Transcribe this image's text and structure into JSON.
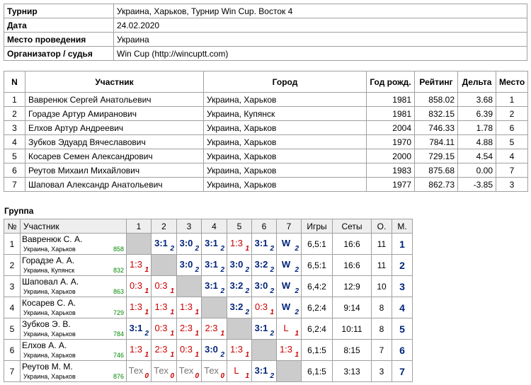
{
  "info": {
    "rows": [
      [
        "Турнир",
        "Украина, Харьков, Турнир Win Cup. Восток 4"
      ],
      [
        "Дата",
        "24.02.2020"
      ],
      [
        "Место проведения",
        "Украина"
      ],
      [
        "Организатор / судья",
        "Win Cup (http://wincuptt.com)"
      ]
    ]
  },
  "participants": {
    "headers": [
      "N",
      "Участник",
      "Город",
      "Год рожд.",
      "Рейтинг",
      "Дельта",
      "Место"
    ],
    "rows": [
      [
        "1",
        "Вавренюк Сергей Анатольевич",
        "Украина, Харьков",
        "1981",
        "858.02",
        "3.68",
        "1"
      ],
      [
        "2",
        "Горадзе Артур Амиранович",
        "Украина, Купянск",
        "1981",
        "832.15",
        "6.39",
        "2"
      ],
      [
        "3",
        "Елхов Артур Андреевич",
        "Украина, Харьков",
        "2004",
        "746.33",
        "1.78",
        "6"
      ],
      [
        "4",
        "Зубков Эдуард Вячеславович",
        "Украина, Харьков",
        "1970",
        "784.11",
        "4.88",
        "5"
      ],
      [
        "5",
        "Косарев Семен Александрович",
        "Украина, Харьков",
        "2000",
        "729.15",
        "4.54",
        "4"
      ],
      [
        "6",
        "Реутов Михаил Михайлович",
        "Украина, Харьков",
        "1983",
        "875.68",
        "0.00",
        "7"
      ],
      [
        "7",
        "Шаповал Александр Анатольевич",
        "Украина, Харьков",
        "1977",
        "862.73",
        "-3.85",
        "3"
      ]
    ]
  },
  "group": {
    "title": "Группа",
    "headers": [
      "№",
      "Участник",
      "1",
      "2",
      "3",
      "4",
      "5",
      "6",
      "7",
      "Игры",
      "Сеты",
      "О.",
      "М."
    ],
    "rows": [
      {
        "num": "1",
        "name": "Вавренюк С. А.",
        "city": "Украина, Харьков",
        "rating": "858",
        "cells": [
          null,
          {
            "score": "3:1",
            "points": 2
          },
          {
            "score": "3:0",
            "points": 2
          },
          {
            "score": "3:1",
            "points": 2
          },
          {
            "score": "1:3",
            "points": 1
          },
          {
            "score": "3:1",
            "points": 2
          },
          {
            "score": "W",
            "points": 2
          }
        ],
        "games": "6,5:1",
        "sets": "16:6",
        "o": "11",
        "m": "1"
      },
      {
        "num": "2",
        "name": "Горадзе А. А.",
        "city": "Украина, Купянск",
        "rating": "832",
        "cells": [
          {
            "score": "1:3",
            "points": 1
          },
          null,
          {
            "score": "3:0",
            "points": 2
          },
          {
            "score": "3:1",
            "points": 2
          },
          {
            "score": "3:0",
            "points": 2
          },
          {
            "score": "3:2",
            "points": 2
          },
          {
            "score": "W",
            "points": 2
          }
        ],
        "games": "6,5:1",
        "sets": "16:6",
        "o": "11",
        "m": "2"
      },
      {
        "num": "3",
        "name": "Шаповал А. А.",
        "city": "Украина, Харьков",
        "rating": "863",
        "cells": [
          {
            "score": "0:3",
            "points": 1
          },
          {
            "score": "0:3",
            "points": 1
          },
          null,
          {
            "score": "3:1",
            "points": 2
          },
          {
            "score": "3:2",
            "points": 2
          },
          {
            "score": "3:0",
            "points": 2
          },
          {
            "score": "W",
            "points": 2
          }
        ],
        "games": "6,4:2",
        "sets": "12:9",
        "o": "10",
        "m": "3"
      },
      {
        "num": "4",
        "name": "Косарев С. А.",
        "city": "Украина, Харьков",
        "rating": "729",
        "cells": [
          {
            "score": "1:3",
            "points": 1
          },
          {
            "score": "1:3",
            "points": 1
          },
          {
            "score": "1:3",
            "points": 1
          },
          null,
          {
            "score": "3:2",
            "points": 2
          },
          {
            "score": "0:3",
            "points": 1
          },
          {
            "score": "W",
            "points": 2
          }
        ],
        "games": "6,2:4",
        "sets": "9:14",
        "o": "8",
        "m": "4"
      },
      {
        "num": "5",
        "name": "Зубков Э. В.",
        "city": "Украина, Харьков",
        "rating": "784",
        "cells": [
          {
            "score": "3:1",
            "points": 2
          },
          {
            "score": "0:3",
            "points": 1
          },
          {
            "score": "2:3",
            "points": 1
          },
          {
            "score": "2:3",
            "points": 1
          },
          null,
          {
            "score": "3:1",
            "points": 2
          },
          {
            "score": "L",
            "points": 1
          }
        ],
        "games": "6,2:4",
        "sets": "10:11",
        "o": "8",
        "m": "5"
      },
      {
        "num": "6",
        "name": "Елхов А. А.",
        "city": "Украина, Харьков",
        "rating": "746",
        "cells": [
          {
            "score": "1:3",
            "points": 1
          },
          {
            "score": "2:3",
            "points": 1
          },
          {
            "score": "0:3",
            "points": 1
          },
          {
            "score": "3:0",
            "points": 2
          },
          {
            "score": "1:3",
            "points": 1
          },
          null,
          {
            "score": "1:3",
            "points": 1
          }
        ],
        "games": "6,1:5",
        "sets": "8:15",
        "o": "7",
        "m": "6"
      },
      {
        "num": "7",
        "name": "Реутов М. М.",
        "city": "Украина, Харьков",
        "rating": "876",
        "cells": [
          {
            "score": "Тех",
            "points": 0
          },
          {
            "score": "Тех",
            "points": 0
          },
          {
            "score": "Тех",
            "points": 0
          },
          {
            "score": "Тех",
            "points": 0
          },
          {
            "score": "L",
            "points": 1
          },
          {
            "score": "3:1",
            "points": 2
          },
          null
        ],
        "games": "6,1:5",
        "sets": "3:13",
        "o": "3",
        "m": "7"
      }
    ]
  }
}
